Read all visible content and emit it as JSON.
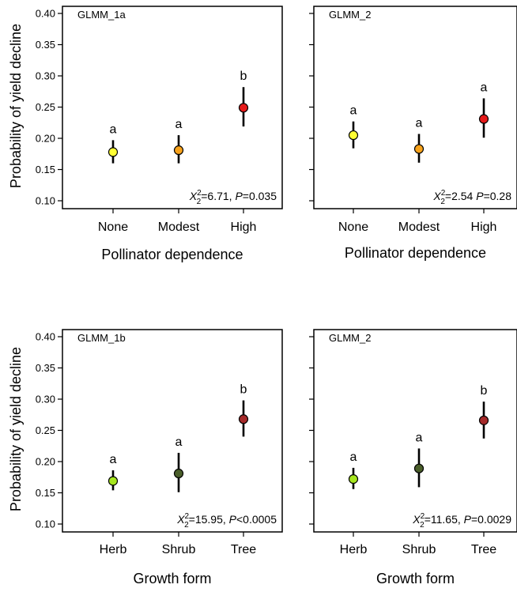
{
  "ylabel": "Probability of yield decline",
  "chart_data": [
    {
      "type": "scatter",
      "title": "GLMM_1a",
      "xlabel": "Pollinator dependence",
      "ylabel": "Probability of yield decline",
      "ylim": [
        0.1,
        0.4
      ],
      "yticks": [
        "0.10",
        "0.15",
        "0.20",
        "0.25",
        "0.30",
        "0.35",
        "0.40"
      ],
      "categories": [
        "None",
        "Modest",
        "High"
      ],
      "values": [
        0.178,
        0.181,
        0.249
      ],
      "lower": [
        0.16,
        0.16,
        0.219
      ],
      "upper": [
        0.197,
        0.205,
        0.282
      ],
      "letters": [
        "a",
        "a",
        "b"
      ],
      "colors": [
        "#ffff33",
        "#f7a21b",
        "#e61a1a"
      ],
      "stat": {
        "chi_label": "X",
        "sup": "2",
        "sub": "2",
        "text1": "=6.71, ",
        "p": "P",
        "text2": "=0.035"
      }
    },
    {
      "type": "scatter",
      "title": "GLMM_2",
      "xlabel": "Pollinator dependence",
      "ylabel": "",
      "ylim": [
        0.1,
        0.4
      ],
      "yticks": [
        "0.10",
        "0.15",
        "0.20",
        "0.25",
        "0.30",
        "0.35",
        "0.40"
      ],
      "categories": [
        "None",
        "Modest",
        "High"
      ],
      "values": [
        0.205,
        0.183,
        0.231
      ],
      "lower": [
        0.184,
        0.161,
        0.201
      ],
      "upper": [
        0.227,
        0.207,
        0.264
      ],
      "letters": [
        "a",
        "a",
        "a"
      ],
      "colors": [
        "#ffff33",
        "#f7a21b",
        "#e61a1a"
      ],
      "stat": {
        "chi_label": "X",
        "sup": "2",
        "sub": "2",
        "text1": "=2.54 ",
        "p": "P",
        "text2": "=0.28"
      }
    },
    {
      "type": "scatter",
      "title": "GLMM_1b",
      "xlabel": "Growth form",
      "ylabel": "Probability of yield decline",
      "ylim": [
        0.1,
        0.4
      ],
      "yticks": [
        "0.10",
        "0.15",
        "0.20",
        "0.25",
        "0.30",
        "0.35",
        "0.40"
      ],
      "categories": [
        "Herb",
        "Shrub",
        "Tree"
      ],
      "values": [
        0.169,
        0.181,
        0.268
      ],
      "lower": [
        0.154,
        0.151,
        0.24
      ],
      "upper": [
        0.186,
        0.214,
        0.298
      ],
      "letters": [
        "a",
        "a",
        "b"
      ],
      "colors": [
        "#a6e61f",
        "#4a5e2a",
        "#a52a2a"
      ],
      "stat": {
        "chi_label": "X",
        "sup": "2",
        "sub": "2",
        "text1": "=15.95, ",
        "p": "P",
        "text2": "<0.0005"
      }
    },
    {
      "type": "scatter",
      "title": "GLMM_2",
      "xlabel": "Growth form",
      "ylabel": "",
      "ylim": [
        0.1,
        0.4
      ],
      "yticks": [
        "0.10",
        "0.15",
        "0.20",
        "0.25",
        "0.30",
        "0.35",
        "0.40"
      ],
      "categories": [
        "Herb",
        "Shrub",
        "Tree"
      ],
      "values": [
        0.172,
        0.189,
        0.266
      ],
      "lower": [
        0.156,
        0.159,
        0.237
      ],
      "upper": [
        0.19,
        0.221,
        0.296
      ],
      "letters": [
        "a",
        "a",
        "b"
      ],
      "colors": [
        "#a6e61f",
        "#4a5e2a",
        "#a52a2a"
      ],
      "stat": {
        "chi_label": "X",
        "sup": "2",
        "sub": "2",
        "text1": "=11.65, ",
        "p": "P",
        "text2": "=0.0029"
      }
    }
  ]
}
